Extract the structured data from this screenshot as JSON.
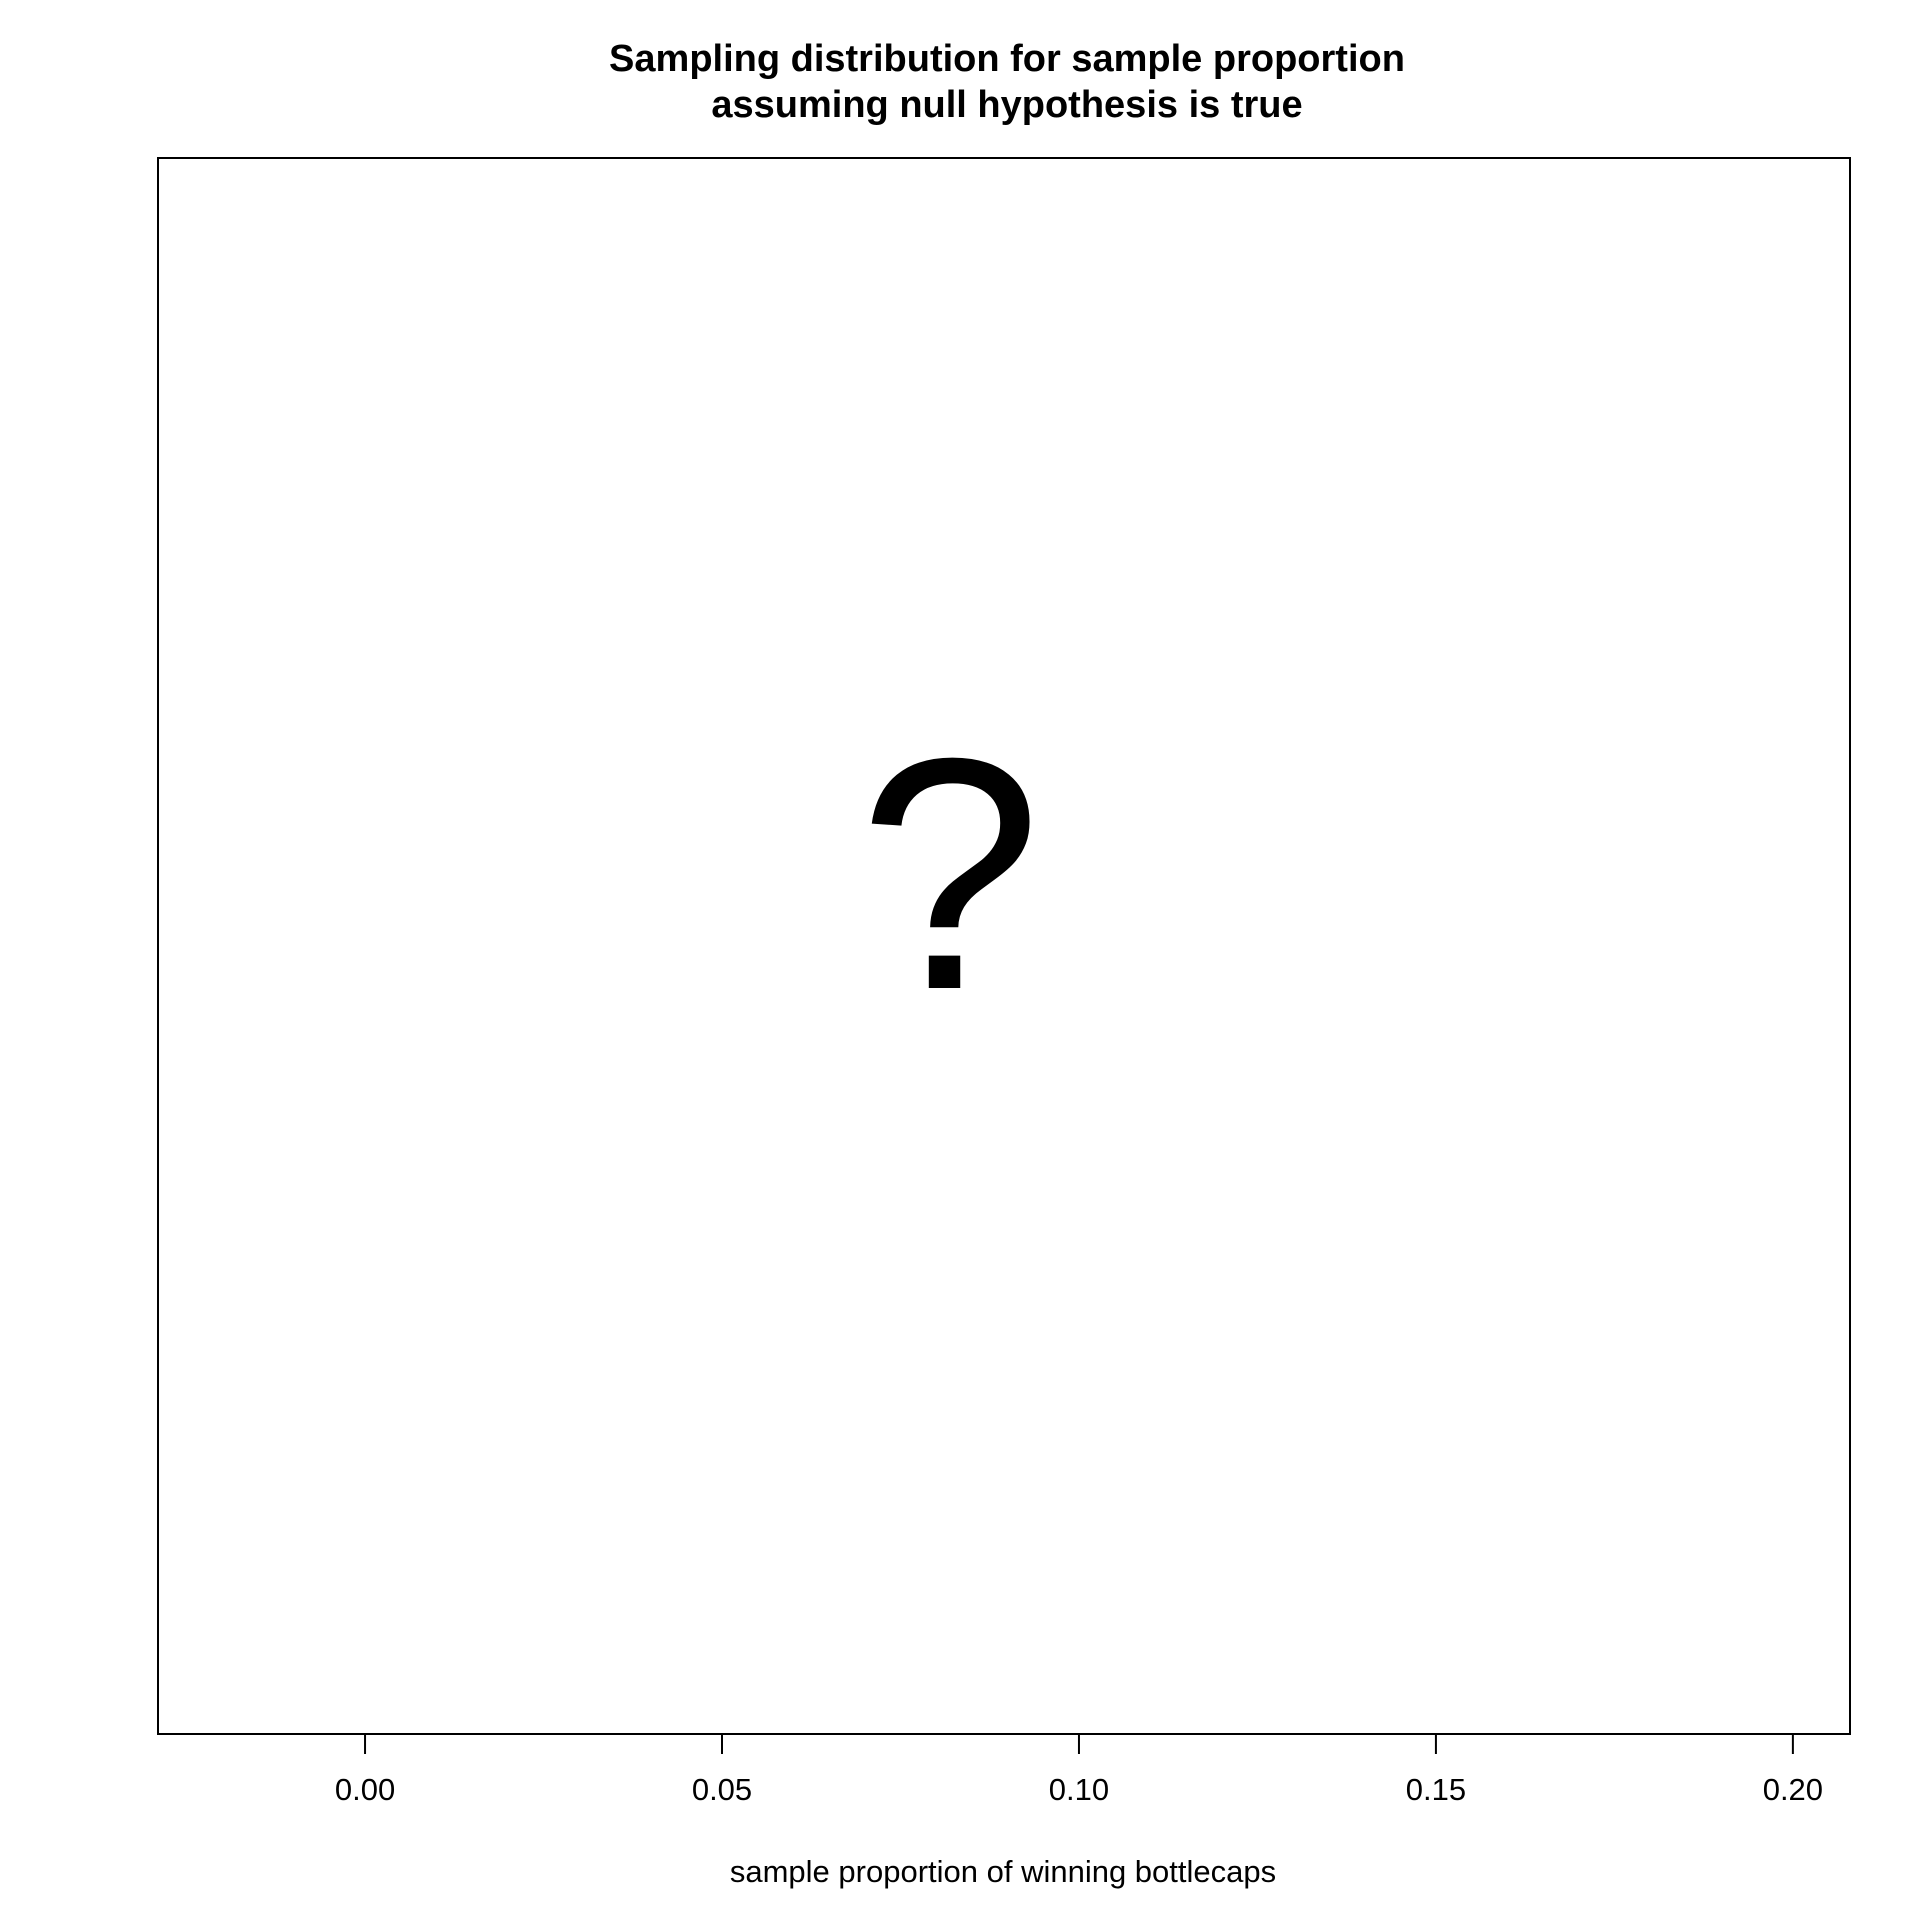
{
  "chart_data": {
    "type": "line",
    "title": [
      "Sampling distribution for sample proportion",
      "assuming null hypothesis is true"
    ],
    "xlabel": "sample proportion of winning bottlecaps",
    "ylabel": "",
    "xlim": [
      -0.029,
      0.208
    ],
    "x_ticks": [
      0.0,
      0.05,
      0.1,
      0.15,
      0.2
    ],
    "x_tick_labels": [
      "0.00",
      "0.05",
      "0.10",
      "0.15",
      "0.20"
    ],
    "annotation": "?",
    "series": [],
    "grid": false,
    "legend": "none"
  },
  "colors": {
    "axis": "#000000",
    "background": "#ffffff"
  }
}
